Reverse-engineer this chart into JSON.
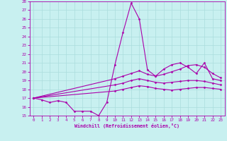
{
  "xlabel": "Windchill (Refroidissement éolien,°C)",
  "background_color": "#c8f0f0",
  "line_color": "#aa00aa",
  "grid_color": "#aadddd",
  "xlim": [
    -0.5,
    23.5
  ],
  "ylim": [
    15,
    28
  ],
  "xticks": [
    0,
    1,
    2,
    3,
    4,
    5,
    6,
    7,
    8,
    9,
    10,
    11,
    12,
    13,
    14,
    15,
    16,
    17,
    18,
    19,
    20,
    21,
    22,
    23
  ],
  "yticks": [
    15,
    16,
    17,
    18,
    19,
    20,
    21,
    22,
    23,
    24,
    25,
    26,
    27,
    28
  ],
  "line_spike": [
    17.0,
    16.8,
    16.5,
    16.7,
    16.5,
    15.5,
    15.5,
    15.5,
    15.0,
    16.5,
    20.8,
    24.5,
    27.8,
    26.0,
    20.2,
    19.5,
    20.3,
    20.8,
    21.0,
    20.5,
    19.8,
    21.0,
    19.2,
    19.0
  ],
  "line_top": [
    17.0,
    null,
    null,
    null,
    null,
    null,
    null,
    null,
    null,
    null,
    19.2,
    19.5,
    19.8,
    20.1,
    19.7,
    19.5,
    19.7,
    20.0,
    20.3,
    20.7,
    20.8,
    20.5,
    19.8,
    19.3
  ],
  "line_mid": [
    17.0,
    null,
    null,
    null,
    null,
    null,
    null,
    null,
    null,
    null,
    18.5,
    18.7,
    19.0,
    19.2,
    19.0,
    18.8,
    18.7,
    18.8,
    18.9,
    19.0,
    19.0,
    18.9,
    18.7,
    18.5
  ],
  "line_bot": [
    17.0,
    null,
    null,
    null,
    null,
    null,
    null,
    null,
    null,
    null,
    17.8,
    18.0,
    18.2,
    18.4,
    18.3,
    18.1,
    18.0,
    17.9,
    18.0,
    18.1,
    18.2,
    18.2,
    18.1,
    18.0
  ]
}
